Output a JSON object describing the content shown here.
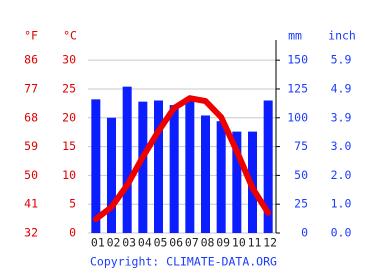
{
  "chart_data": {
    "type": "climate",
    "ylabel_alt": "°F",
    "ylabel": "°C",
    "y2label": "mm",
    "y2label_alt": "inch",
    "categories": [
      "01",
      "02",
      "03",
      "04",
      "05",
      "06",
      "07",
      "08",
      "09",
      "10",
      "11",
      "12"
    ],
    "series": [
      {
        "type": "bar",
        "axis": "y2",
        "color": "#0a1eff",
        "values": [
          116,
          100,
          127,
          114,
          115,
          111,
          115,
          102,
          97,
          88,
          88,
          115
        ]
      },
      {
        "type": "line",
        "axis": "y",
        "color": "#ee0000",
        "values": [
          2.4,
          4.5,
          8.3,
          13.2,
          17.7,
          21.7,
          23.4,
          22.9,
          20.1,
          14.2,
          7.8,
          3.5
        ]
      }
    ],
    "ylim": [
      0,
      33.5
    ],
    "yticks": [
      0,
      5,
      10,
      15,
      20,
      25,
      30
    ],
    "yticks_alt": [
      {
        "value": 0,
        "label": "32"
      },
      {
        "value": 5,
        "label": "41"
      },
      {
        "value": 10,
        "label": "50"
      },
      {
        "value": 15,
        "label": "59"
      },
      {
        "value": 20,
        "label": "68"
      },
      {
        "value": 25,
        "label": "77"
      },
      {
        "value": 30,
        "label": "86"
      }
    ],
    "y2lim": [
      0,
      167.5
    ],
    "y2ticks": [
      0,
      25,
      50,
      75,
      100,
      125,
      150
    ],
    "y2ticks_alt": [
      {
        "value": 0,
        "label": "0.0"
      },
      {
        "value": 25,
        "label": "1.0"
      },
      {
        "value": 50,
        "label": "2.0"
      },
      {
        "value": 75,
        "label": "3.0"
      },
      {
        "value": 100,
        "label": "3.9"
      },
      {
        "value": 125,
        "label": "4.9"
      },
      {
        "value": 150,
        "label": "5.9"
      }
    ],
    "grid": true,
    "copyright": "Copyright: CLIMATE-DATA.ORG"
  }
}
